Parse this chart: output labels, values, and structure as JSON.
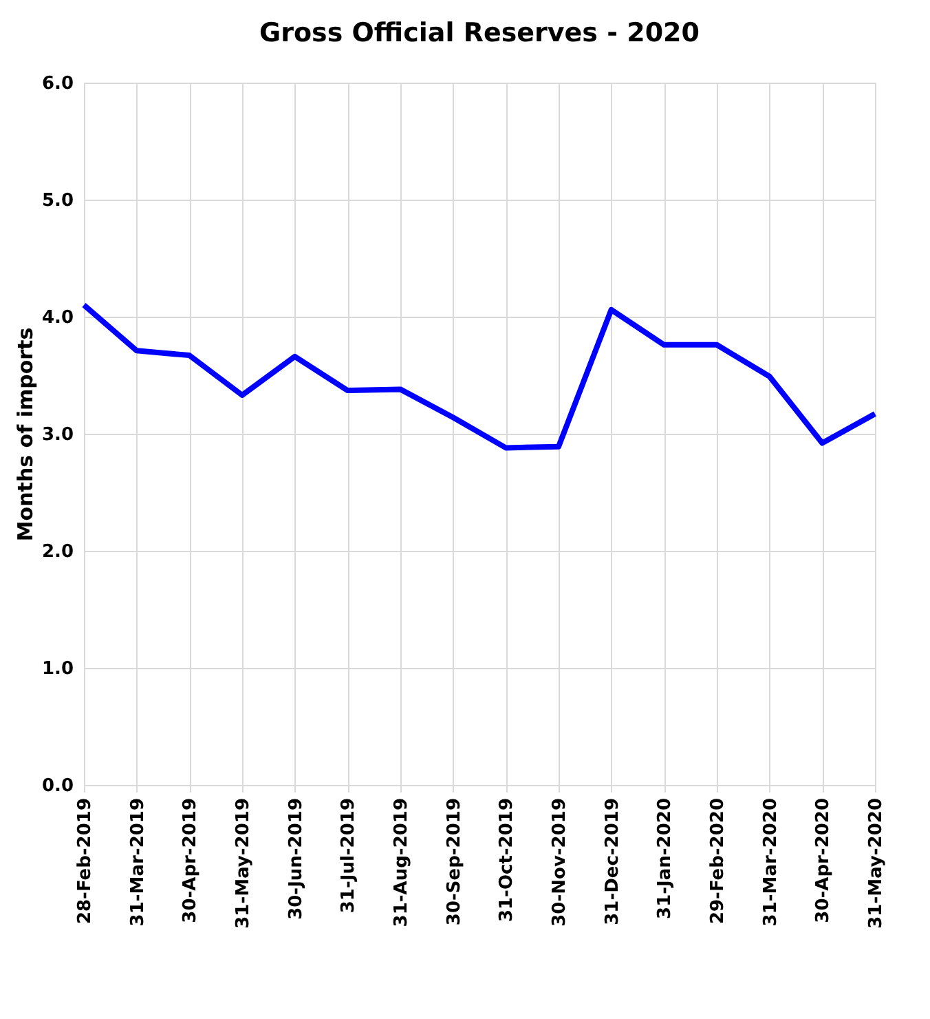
{
  "chart_data": {
    "type": "line",
    "title": "Gross Official Reserves -  2020",
    "ylabel": "Months of imports",
    "categories": [
      "28-Feb-2019",
      "31-Mar-2019",
      "30-Apr-2019",
      "31-May-2019",
      "30-Jun-2019",
      "31-Jul-2019",
      "31-Aug-2019",
      "30-Sep-2019",
      "31-Oct-2019",
      "30-Nov-2019",
      "31-Dec-2019",
      "31-Jan-2020",
      "29-Feb-2020",
      "31-Mar-2020",
      "30-Apr-2020",
      "31-May-2020"
    ],
    "series": [
      {
        "color": "#0000ff",
        "values": [
          4.1,
          3.71,
          3.67,
          3.33,
          3.66,
          3.37,
          3.38,
          3.14,
          2.88,
          2.89,
          4.06,
          3.76,
          3.76,
          3.49,
          2.92,
          3.17
        ]
      }
    ],
    "ylim": [
      0,
      6
    ],
    "yticks": [
      {
        "value": 0,
        "label": "0.0"
      },
      {
        "value": 1,
        "label": "1.0"
      },
      {
        "value": 2,
        "label": "2.0"
      },
      {
        "value": 3,
        "label": "3.0"
      },
      {
        "value": 4,
        "label": "4.0"
      },
      {
        "value": 5,
        "label": "5.0"
      },
      {
        "value": 6,
        "label": "6.0"
      }
    ],
    "grid": true,
    "marker": "none",
    "line_style": "solid",
    "legend": false
  }
}
